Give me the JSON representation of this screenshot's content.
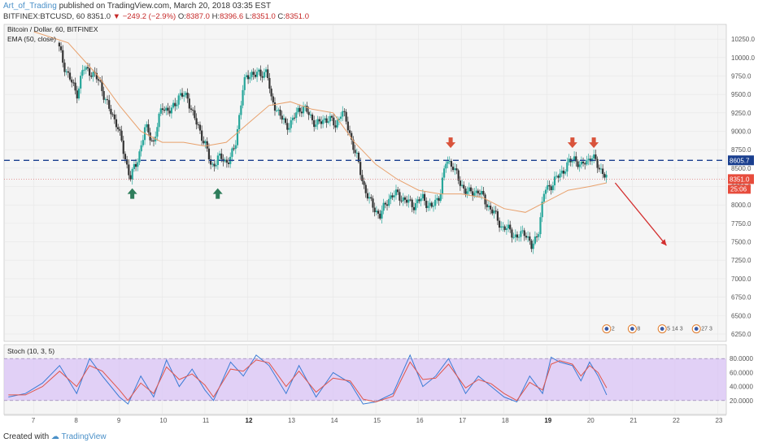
{
  "header": {
    "author": "Art_of_Trading",
    "published_text": "published on TradingView.com, March 20, 2018 03:35 EST",
    "symbol": "BITFINEX:BTCUSD, 60",
    "last": "8351.0",
    "change": "−249.2 (−2.9%)",
    "open_label": "O:",
    "open": "8387.0",
    "high_label": "H:",
    "high": "8396.6",
    "low_label": "L:",
    "low": "8351.0",
    "close_label": "C:",
    "close": "8351.0"
  },
  "footer": {
    "created_with": "Created with",
    "brand": "TradingView"
  },
  "colors": {
    "up": "#26a69a",
    "down": "#333333",
    "ema": "#e8a06b",
    "resistance": "#1a3f8f",
    "price_line": "#e07b7b",
    "arrow_up": "#2e7d5b",
    "arrow_down": "#d9533b",
    "stoch_k": "#3a7bd5",
    "stoch_d": "#e0554a",
    "stoch_band": "#d9c3f5",
    "axis_text": "#555555",
    "axis_line": "#bbbbbb"
  },
  "chart_data": [
    {
      "type": "candlestick",
      "title": "Bitcoin / Dollar, 60, BITFINEX",
      "indicator_label": "EMA (50, close)",
      "y_ticks": [
        6250,
        6500,
        6750,
        7000,
        7250,
        7500,
        7750,
        8000,
        8250,
        8500,
        8750,
        9000,
        9250,
        9500,
        9750,
        10000,
        10250
      ],
      "ylim": [
        6150,
        10450
      ],
      "x_tick_labels": [
        "7",
        "8",
        "9",
        "10",
        "11",
        "12",
        "13",
        "14",
        "15",
        "16",
        "17",
        "18",
        "19",
        "20",
        "21",
        "22",
        "23"
      ],
      "x_bold_ticks": [
        "12",
        "19"
      ],
      "xlim": [
        6.3,
        23.2
      ],
      "close_path": [
        [
          7.55,
          10200
        ],
        [
          7.7,
          9900
        ],
        [
          7.85,
          9700
        ],
        [
          8.0,
          9500
        ],
        [
          8.15,
          9850
        ],
        [
          8.35,
          9800
        ],
        [
          8.55,
          9650
        ],
        [
          8.75,
          9300
        ],
        [
          8.95,
          9100
        ],
        [
          9.1,
          8700
        ],
        [
          9.25,
          8380
        ],
        [
          9.4,
          8550
        ],
        [
          9.6,
          9050
        ],
        [
          9.8,
          8850
        ],
        [
          10.0,
          9350
        ],
        [
          10.2,
          9250
        ],
        [
          10.4,
          9500
        ],
        [
          10.6,
          9450
        ],
        [
          10.8,
          9100
        ],
        [
          11.0,
          8850
        ],
        [
          11.15,
          8500
        ],
        [
          11.3,
          8650
        ],
        [
          11.5,
          8580
        ],
        [
          11.7,
          8750
        ],
        [
          11.9,
          9650
        ],
        [
          12.1,
          9800
        ],
        [
          12.3,
          9750
        ],
        [
          12.45,
          9850
        ],
        [
          12.55,
          9400
        ],
        [
          12.7,
          9300
        ],
        [
          12.9,
          9050
        ],
        [
          13.1,
          9200
        ],
        [
          13.3,
          9350
        ],
        [
          13.5,
          9150
        ],
        [
          13.7,
          9100
        ],
        [
          13.9,
          9200
        ],
        [
          14.05,
          9050
        ],
        [
          14.2,
          9300
        ],
        [
          14.4,
          8950
        ],
        [
          14.55,
          8650
        ],
        [
          14.7,
          8300
        ],
        [
          14.85,
          8050
        ],
        [
          15.1,
          7850
        ],
        [
          15.3,
          8100
        ],
        [
          15.5,
          8150
        ],
        [
          15.7,
          8050
        ],
        [
          15.9,
          8000
        ],
        [
          16.1,
          8100
        ],
        [
          16.3,
          7950
        ],
        [
          16.5,
          8150
        ],
        [
          16.65,
          8600
        ],
        [
          16.8,
          8550
        ],
        [
          16.95,
          8300
        ],
        [
          17.2,
          8150
        ],
        [
          17.4,
          8200
        ],
        [
          17.55,
          8050
        ],
        [
          17.75,
          7900
        ],
        [
          17.95,
          7700
        ],
        [
          18.15,
          7650
        ],
        [
          18.3,
          7550
        ],
        [
          18.5,
          7650
        ],
        [
          18.65,
          7400
        ],
        [
          18.8,
          7650
        ],
        [
          18.95,
          8200
        ],
        [
          19.15,
          8300
        ],
        [
          19.35,
          8450
        ],
        [
          19.5,
          8550
        ],
        [
          19.65,
          8650
        ],
        [
          19.8,
          8500
        ],
        [
          19.9,
          8600
        ],
        [
          20.05,
          8650
        ],
        [
          20.25,
          8500
        ],
        [
          20.4,
          8351
        ]
      ],
      "ema_path": [
        [
          7.0,
          10350
        ],
        [
          7.8,
          10200
        ],
        [
          8.5,
          9750
        ],
        [
          9.0,
          9350
        ],
        [
          9.5,
          9000
        ],
        [
          10.0,
          8850
        ],
        [
          10.5,
          8850
        ],
        [
          11.0,
          8800
        ],
        [
          11.5,
          8850
        ],
        [
          12.0,
          9100
        ],
        [
          12.5,
          9350
        ],
        [
          13.0,
          9400
        ],
        [
          13.5,
          9300
        ],
        [
          14.0,
          9250
        ],
        [
          14.5,
          8850
        ],
        [
          15.0,
          8550
        ],
        [
          15.5,
          8350
        ],
        [
          16.0,
          8200
        ],
        [
          16.5,
          8150
        ],
        [
          17.0,
          8150
        ],
        [
          17.5,
          8100
        ],
        [
          18.0,
          7950
        ],
        [
          18.5,
          7900
        ],
        [
          19.0,
          8050
        ],
        [
          19.5,
          8200
        ],
        [
          20.0,
          8250
        ],
        [
          20.4,
          8300
        ]
      ],
      "resistance_level": 8605.7,
      "resistance_label": "8605.7",
      "last_price": 8351.0,
      "last_price_label": "8351.0",
      "countdown_label": "25:06",
      "up_arrows": [
        9.3,
        11.3
      ],
      "down_arrows": [
        16.75,
        19.6,
        20.1
      ],
      "projection": {
        "from": [
          20.6,
          8300
        ],
        "to": [
          21.8,
          7450
        ]
      },
      "event_badges": [
        {
          "x": 20.4,
          "label": "2"
        },
        {
          "x": 21.0,
          "label": "8"
        },
        {
          "x": 21.7,
          "label": "5 14 3"
        },
        {
          "x": 22.5,
          "label": "27 3"
        }
      ]
    },
    {
      "type": "line",
      "title": "Stoch (10, 3, 5)",
      "y_ticks": [
        20,
        40,
        60,
        80
      ],
      "y_tick_labels": [
        "20.0000",
        "40.0000",
        "60.0000",
        "80.0000"
      ],
      "ylim": [
        0,
        100
      ],
      "band": [
        20,
        80
      ],
      "series": [
        {
          "key": "k",
          "x": [
            6.4,
            6.8,
            7.2,
            7.6,
            8.0,
            8.3,
            8.6,
            9.0,
            9.2,
            9.5,
            9.8,
            10.1,
            10.4,
            10.7,
            11.0,
            11.2,
            11.6,
            11.9,
            12.2,
            12.5,
            12.9,
            13.2,
            13.6,
            14.0,
            14.4,
            14.7,
            15.0,
            15.4,
            15.8,
            16.1,
            16.4,
            16.7,
            17.1,
            17.4,
            17.7,
            18.0,
            18.3,
            18.6,
            18.9,
            19.1,
            19.3,
            19.6,
            19.8,
            20.0,
            20.2,
            20.4
          ],
          "values": [
            25,
            30,
            45,
            70,
            30,
            80,
            55,
            25,
            15,
            55,
            25,
            78,
            40,
            65,
            35,
            20,
            75,
            55,
            85,
            70,
            30,
            70,
            25,
            60,
            45,
            15,
            18,
            30,
            85,
            40,
            55,
            80,
            30,
            55,
            40,
            25,
            18,
            55,
            30,
            82,
            75,
            70,
            48,
            75,
            55,
            28
          ]
        },
        {
          "key": "d",
          "x": [
            6.4,
            6.8,
            7.2,
            7.6,
            8.0,
            8.3,
            8.6,
            9.0,
            9.2,
            9.5,
            9.8,
            10.1,
            10.4,
            10.7,
            11.0,
            11.2,
            11.6,
            11.9,
            12.2,
            12.5,
            12.9,
            13.2,
            13.6,
            14.0,
            14.4,
            14.7,
            15.0,
            15.4,
            15.8,
            16.1,
            16.4,
            16.7,
            17.1,
            17.4,
            17.7,
            18.0,
            18.3,
            18.6,
            18.9,
            19.1,
            19.3,
            19.6,
            19.8,
            20.0,
            20.2,
            20.4
          ],
          "values": [
            28,
            28,
            40,
            62,
            40,
            70,
            62,
            35,
            20,
            45,
            30,
            68,
            50,
            58,
            42,
            25,
            65,
            62,
            78,
            74,
            40,
            62,
            32,
            52,
            48,
            22,
            18,
            26,
            75,
            50,
            52,
            72,
            38,
            50,
            44,
            30,
            20,
            46,
            35,
            72,
            77,
            72,
            55,
            70,
            60,
            38
          ]
        }
      ]
    }
  ]
}
